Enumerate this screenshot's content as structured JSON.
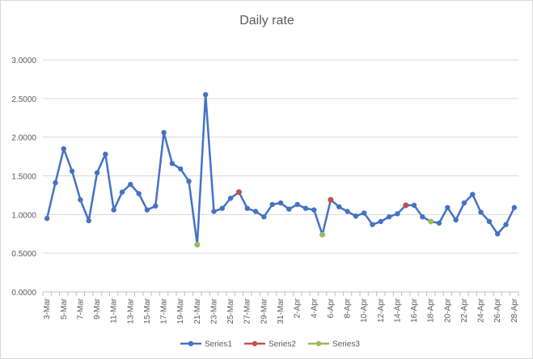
{
  "chart_data": {
    "type": "line",
    "title": "Daily rate",
    "xlabel": "",
    "ylabel": "",
    "ylim": [
      0,
      3
    ],
    "yticks": [
      "0.0000",
      "0.5000",
      "1.0000",
      "1.5000",
      "2.0000",
      "2.5000",
      "3.0000"
    ],
    "grid": true,
    "legend_position": "bottom",
    "x": [
      "3-Mar",
      "4-Mar",
      "5-Mar",
      "6-Mar",
      "7-Mar",
      "8-Mar",
      "9-Mar",
      "10-Mar",
      "11-Mar",
      "12-Mar",
      "13-Mar",
      "14-Mar",
      "15-Mar",
      "16-Mar",
      "17-Mar",
      "18-Mar",
      "19-Mar",
      "20-Mar",
      "21-Mar",
      "22-Mar",
      "23-Mar",
      "24-Mar",
      "25-Mar",
      "26-Mar",
      "27-Mar",
      "28-Mar",
      "29-Mar",
      "30-Mar",
      "31-Mar",
      "1-Apr",
      "2-Apr",
      "3-Apr",
      "4-Apr",
      "5-Apr",
      "6-Apr",
      "7-Apr",
      "8-Apr",
      "9-Apr",
      "10-Apr",
      "11-Apr",
      "12-Apr",
      "13-Apr",
      "14-Apr",
      "15-Apr",
      "16-Apr",
      "17-Apr",
      "18-Apr",
      "19-Apr",
      "20-Apr",
      "21-Apr",
      "22-Apr",
      "23-Apr",
      "24-Apr",
      "25-Apr",
      "26-Apr",
      "27-Apr",
      "28-Apr"
    ],
    "xtick_labels": [
      "3-Mar",
      "5-Mar",
      "7-Mar",
      "9-Mar",
      "11-Mar",
      "13-Mar",
      "15-Mar",
      "17-Mar",
      "19-Mar",
      "21-Mar",
      "23-Mar",
      "25-Mar",
      "27-Mar",
      "29-Mar",
      "31-Mar",
      "2-Apr",
      "4-Apr",
      "6-Apr",
      "8-Apr",
      "10-Apr",
      "12-Apr",
      "14-Apr",
      "16-Apr",
      "18-Apr",
      "20-Apr",
      "22-Apr",
      "24-Apr",
      "26-Apr",
      "28-Apr"
    ],
    "series": [
      {
        "name": "Series1",
        "color": "#4472c4",
        "values": [
          0.95,
          1.41,
          1.85,
          1.56,
          1.19,
          0.92,
          1.54,
          1.78,
          1.06,
          1.29,
          1.39,
          1.27,
          1.06,
          1.11,
          2.06,
          1.66,
          1.59,
          1.43,
          0.61,
          2.55,
          1.04,
          1.08,
          1.21,
          1.29,
          1.08,
          1.04,
          0.97,
          1.13,
          1.15,
          1.07,
          1.13,
          1.08,
          1.06,
          0.74,
          1.19,
          1.1,
          1.04,
          0.98,
          1.02,
          0.87,
          0.91,
          0.97,
          1.01,
          1.12,
          1.12,
          0.97,
          0.91,
          0.89,
          1.09,
          0.93,
          1.15,
          1.26,
          1.03,
          0.91,
          0.75,
          0.87,
          1.09
        ]
      },
      {
        "name": "Series2",
        "color": "#c0504d",
        "points": [
          {
            "x": "26-Mar",
            "y": 1.29
          },
          {
            "x": "6-Apr",
            "y": 1.19
          },
          {
            "x": "15-Apr",
            "y": 1.12
          }
        ]
      },
      {
        "name": "Series3",
        "color": "#9bbb59",
        "points": [
          {
            "x": "21-Mar",
            "y": 0.61
          },
          {
            "x": "5-Apr",
            "y": 0.74
          },
          {
            "x": "18-Apr",
            "y": 0.91
          }
        ]
      }
    ]
  }
}
